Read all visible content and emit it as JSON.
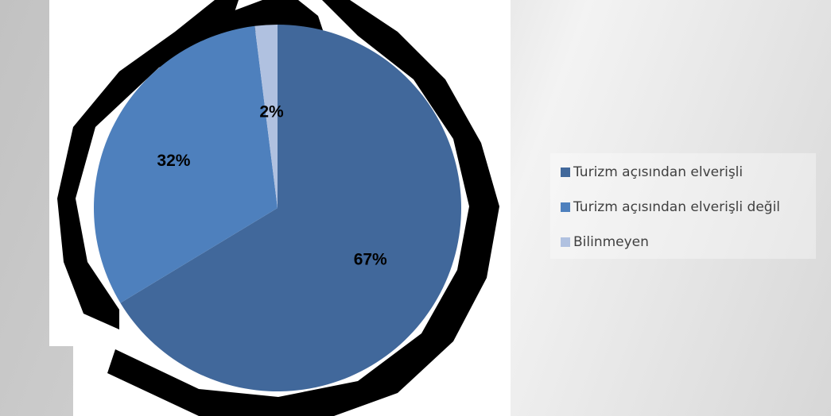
{
  "chart_data": {
    "type": "pie",
    "categories": [
      "Turizm açısından elverişli",
      "Turizm açısından elverişli değil",
      "Bilinmeyen"
    ],
    "values": [
      67,
      32,
      2
    ],
    "data_labels": [
      "67%",
      "32%",
      "2%"
    ],
    "colors": [
      "#41689b",
      "#4e80bd",
      "#b0c1e0"
    ],
    "start_angle_deg": 0,
    "direction": "clockwise",
    "legend_position": "right"
  },
  "legend": {
    "items": [
      {
        "label": "Turizm açısından elverişli",
        "color": "#41689b"
      },
      {
        "label": "Turizm açısından elverişli değil",
        "color": "#4e80bd"
      },
      {
        "label": "Bilinmeyen",
        "color": "#b0c1e0"
      }
    ]
  }
}
